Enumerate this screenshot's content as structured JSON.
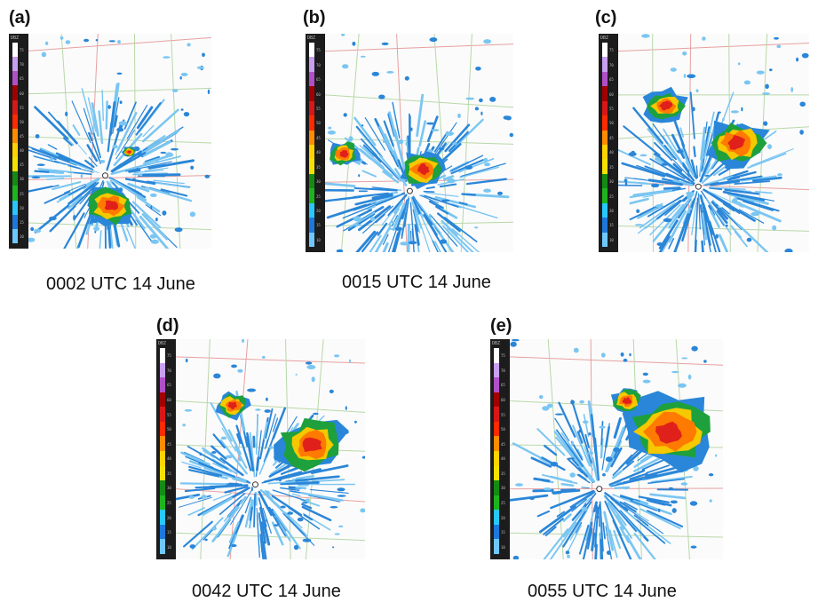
{
  "panels": [
    {
      "label": "(a)",
      "caption": "0002 UTC 14 June"
    },
    {
      "label": "(b)",
      "caption": "0015 UTC 14 June"
    },
    {
      "label": "(c)",
      "caption": ""
    },
    {
      "label": "(d)",
      "caption": "0042 UTC 14 June"
    },
    {
      "label": "(e)",
      "caption": "0055 UTC 14 June"
    }
  ],
  "colorbar": {
    "unit": "DBZ",
    "ticks": [
      "75",
      "70",
      "65",
      "60",
      "55",
      "50",
      "45",
      "40",
      "35",
      "30",
      "25",
      "20",
      "15",
      "10"
    ],
    "colors": [
      "#ffffff",
      "#c8a0f0",
      "#b050c8",
      "#a00000",
      "#d81818",
      "#ff2a00",
      "#ff8c00",
      "#ffd200",
      "#f5e100",
      "#148c14",
      "#1eb41e",
      "#28c8ff",
      "#1e78dc",
      "#6ec8ff"
    ]
  },
  "colors": {
    "weak_echo": "#2a86d8",
    "light_echo": "#7ac6f2",
    "moderate_echo": "#1ea03c",
    "strong_echo": "#f5c800",
    "heavy_echo": "#ff7a00",
    "intense_echo": "#e0201a",
    "road": "#e8a0a0",
    "county_line": "#b8d8a8"
  }
}
